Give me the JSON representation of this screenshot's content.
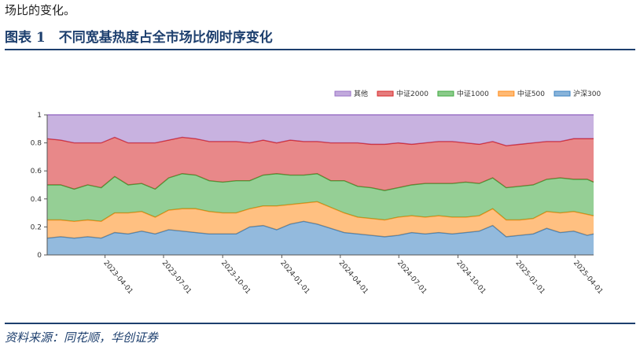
{
  "header": {
    "intro_text": "场比的变化。",
    "figure_title": "图表 1　不同宽基热度占全市场比例时序变化"
  },
  "footer": {
    "source": "资料来源：同花顺，华创证券"
  },
  "chart_data": {
    "type": "area",
    "stacked": true,
    "title": "",
    "xlabel": "",
    "ylabel": "",
    "ylim": [
      0,
      1
    ],
    "yticks": [
      "0",
      "0.2",
      "0.4",
      "0.6",
      "0.8",
      "1"
    ],
    "xlim": [
      "2023-01-01",
      "2025-04-30"
    ],
    "xticks": [
      "2023-04-01",
      "2023-07-01",
      "2023-10-01",
      "2024-01-01",
      "2024-04-01",
      "2024-07-01",
      "2024-10-01",
      "2025-01-01",
      "2025-04-01"
    ],
    "grid": false,
    "legend_position": "top-right",
    "x": [
      "2023-01-01",
      "2023-01-22",
      "2023-02-12",
      "2023-03-05",
      "2023-03-26",
      "2023-04-16",
      "2023-05-07",
      "2023-05-28",
      "2023-06-18",
      "2023-07-09",
      "2023-07-30",
      "2023-08-20",
      "2023-09-10",
      "2023-10-01",
      "2023-10-22",
      "2023-11-12",
      "2023-12-03",
      "2023-12-24",
      "2024-01-14",
      "2024-02-04",
      "2024-02-25",
      "2024-03-17",
      "2024-04-07",
      "2024-04-28",
      "2024-05-19",
      "2024-06-09",
      "2024-06-30",
      "2024-07-21",
      "2024-08-11",
      "2024-09-01",
      "2024-09-22",
      "2024-10-13",
      "2024-11-03",
      "2024-11-24",
      "2024-12-15",
      "2025-01-05",
      "2025-01-26",
      "2025-02-16",
      "2025-03-09",
      "2025-03-30",
      "2025-04-20",
      "2025-04-30"
    ],
    "series": [
      {
        "name": "沪深300",
        "color": "#3a82c1",
        "values": [
          0.12,
          0.13,
          0.12,
          0.13,
          0.12,
          0.16,
          0.15,
          0.17,
          0.15,
          0.18,
          0.17,
          0.16,
          0.15,
          0.15,
          0.15,
          0.2,
          0.21,
          0.18,
          0.22,
          0.24,
          0.22,
          0.19,
          0.16,
          0.15,
          0.14,
          0.13,
          0.14,
          0.16,
          0.15,
          0.16,
          0.15,
          0.16,
          0.17,
          0.21,
          0.13,
          0.14,
          0.15,
          0.19,
          0.16,
          0.17,
          0.14,
          0.15
        ]
      },
      {
        "name": "中证500",
        "color": "#ff8c1a",
        "values": [
          0.13,
          0.12,
          0.12,
          0.12,
          0.12,
          0.14,
          0.15,
          0.14,
          0.12,
          0.14,
          0.16,
          0.17,
          0.16,
          0.15,
          0.15,
          0.13,
          0.14,
          0.17,
          0.14,
          0.13,
          0.16,
          0.15,
          0.14,
          0.12,
          0.12,
          0.12,
          0.13,
          0.12,
          0.12,
          0.12,
          0.12,
          0.11,
          0.11,
          0.12,
          0.12,
          0.11,
          0.11,
          0.12,
          0.14,
          0.14,
          0.15,
          0.13
        ]
      },
      {
        "name": "中证1000",
        "color": "#3ea83e",
        "values": [
          0.25,
          0.25,
          0.23,
          0.25,
          0.24,
          0.26,
          0.2,
          0.2,
          0.2,
          0.23,
          0.25,
          0.24,
          0.22,
          0.22,
          0.23,
          0.2,
          0.22,
          0.23,
          0.21,
          0.2,
          0.2,
          0.19,
          0.23,
          0.22,
          0.22,
          0.21,
          0.21,
          0.22,
          0.24,
          0.23,
          0.24,
          0.25,
          0.23,
          0.22,
          0.23,
          0.24,
          0.24,
          0.23,
          0.25,
          0.23,
          0.25,
          0.24
        ]
      },
      {
        "name": "中证2000",
        "color": "#d62728",
        "values": [
          0.33,
          0.32,
          0.33,
          0.3,
          0.32,
          0.28,
          0.3,
          0.29,
          0.33,
          0.27,
          0.26,
          0.26,
          0.28,
          0.29,
          0.28,
          0.27,
          0.25,
          0.22,
          0.25,
          0.24,
          0.23,
          0.27,
          0.27,
          0.31,
          0.31,
          0.33,
          0.32,
          0.29,
          0.29,
          0.3,
          0.3,
          0.28,
          0.28,
          0.26,
          0.3,
          0.3,
          0.3,
          0.27,
          0.26,
          0.29,
          0.29,
          0.31
        ]
      },
      {
        "name": "其他",
        "color": "#9a72c6",
        "values": [
          0.17,
          0.18,
          0.2,
          0.2,
          0.2,
          0.16,
          0.2,
          0.2,
          0.2,
          0.18,
          0.16,
          0.17,
          0.19,
          0.19,
          0.19,
          0.2,
          0.18,
          0.2,
          0.18,
          0.19,
          0.19,
          0.2,
          0.2,
          0.2,
          0.21,
          0.21,
          0.2,
          0.21,
          0.2,
          0.19,
          0.19,
          0.2,
          0.21,
          0.19,
          0.22,
          0.21,
          0.2,
          0.19,
          0.19,
          0.17,
          0.17,
          0.17
        ]
      }
    ]
  }
}
